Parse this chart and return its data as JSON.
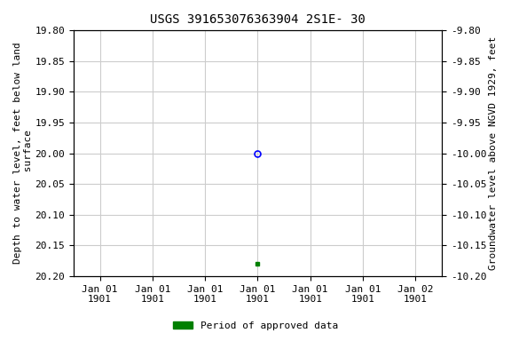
{
  "title": "USGS 391653076363904 2S1E- 30",
  "ylabel_left": "Depth to water level, feet below land\n surface",
  "ylabel_right": "Groundwater level above NGVD 1929, feet",
  "ylim_left": [
    19.8,
    20.2
  ],
  "ylim_right": [
    -9.8,
    -10.2
  ],
  "yticks_left": [
    19.8,
    19.85,
    19.9,
    19.95,
    20.0,
    20.05,
    20.1,
    20.15,
    20.2
  ],
  "yticks_right": [
    -9.8,
    -9.85,
    -9.9,
    -9.95,
    -10.0,
    -10.05,
    -10.1,
    -10.15,
    -10.2
  ],
  "data_point_x": "1901-01-01",
  "data_point_y": 20.0,
  "data_point2_x": "1901-01-01",
  "data_point2_y": 20.18,
  "open_circle_color": "#0000ff",
  "filled_square_color": "#008000",
  "legend_label": "Period of approved data",
  "legend_color": "#008000",
  "grid_color": "#cccccc",
  "background_color": "#ffffff",
  "title_fontsize": 10,
  "label_fontsize": 8,
  "tick_fontsize": 8,
  "xtick_labels": [
    "Jan 01\n1901",
    "Jan 01\n1901",
    "Jan 01\n1901",
    "Jan 01\n1901",
    "Jan 01\n1901",
    "Jan 01\n1901",
    "Jan 02\n1901"
  ],
  "xtick_positions": [
    0,
    1,
    2,
    3,
    4,
    5,
    6
  ]
}
